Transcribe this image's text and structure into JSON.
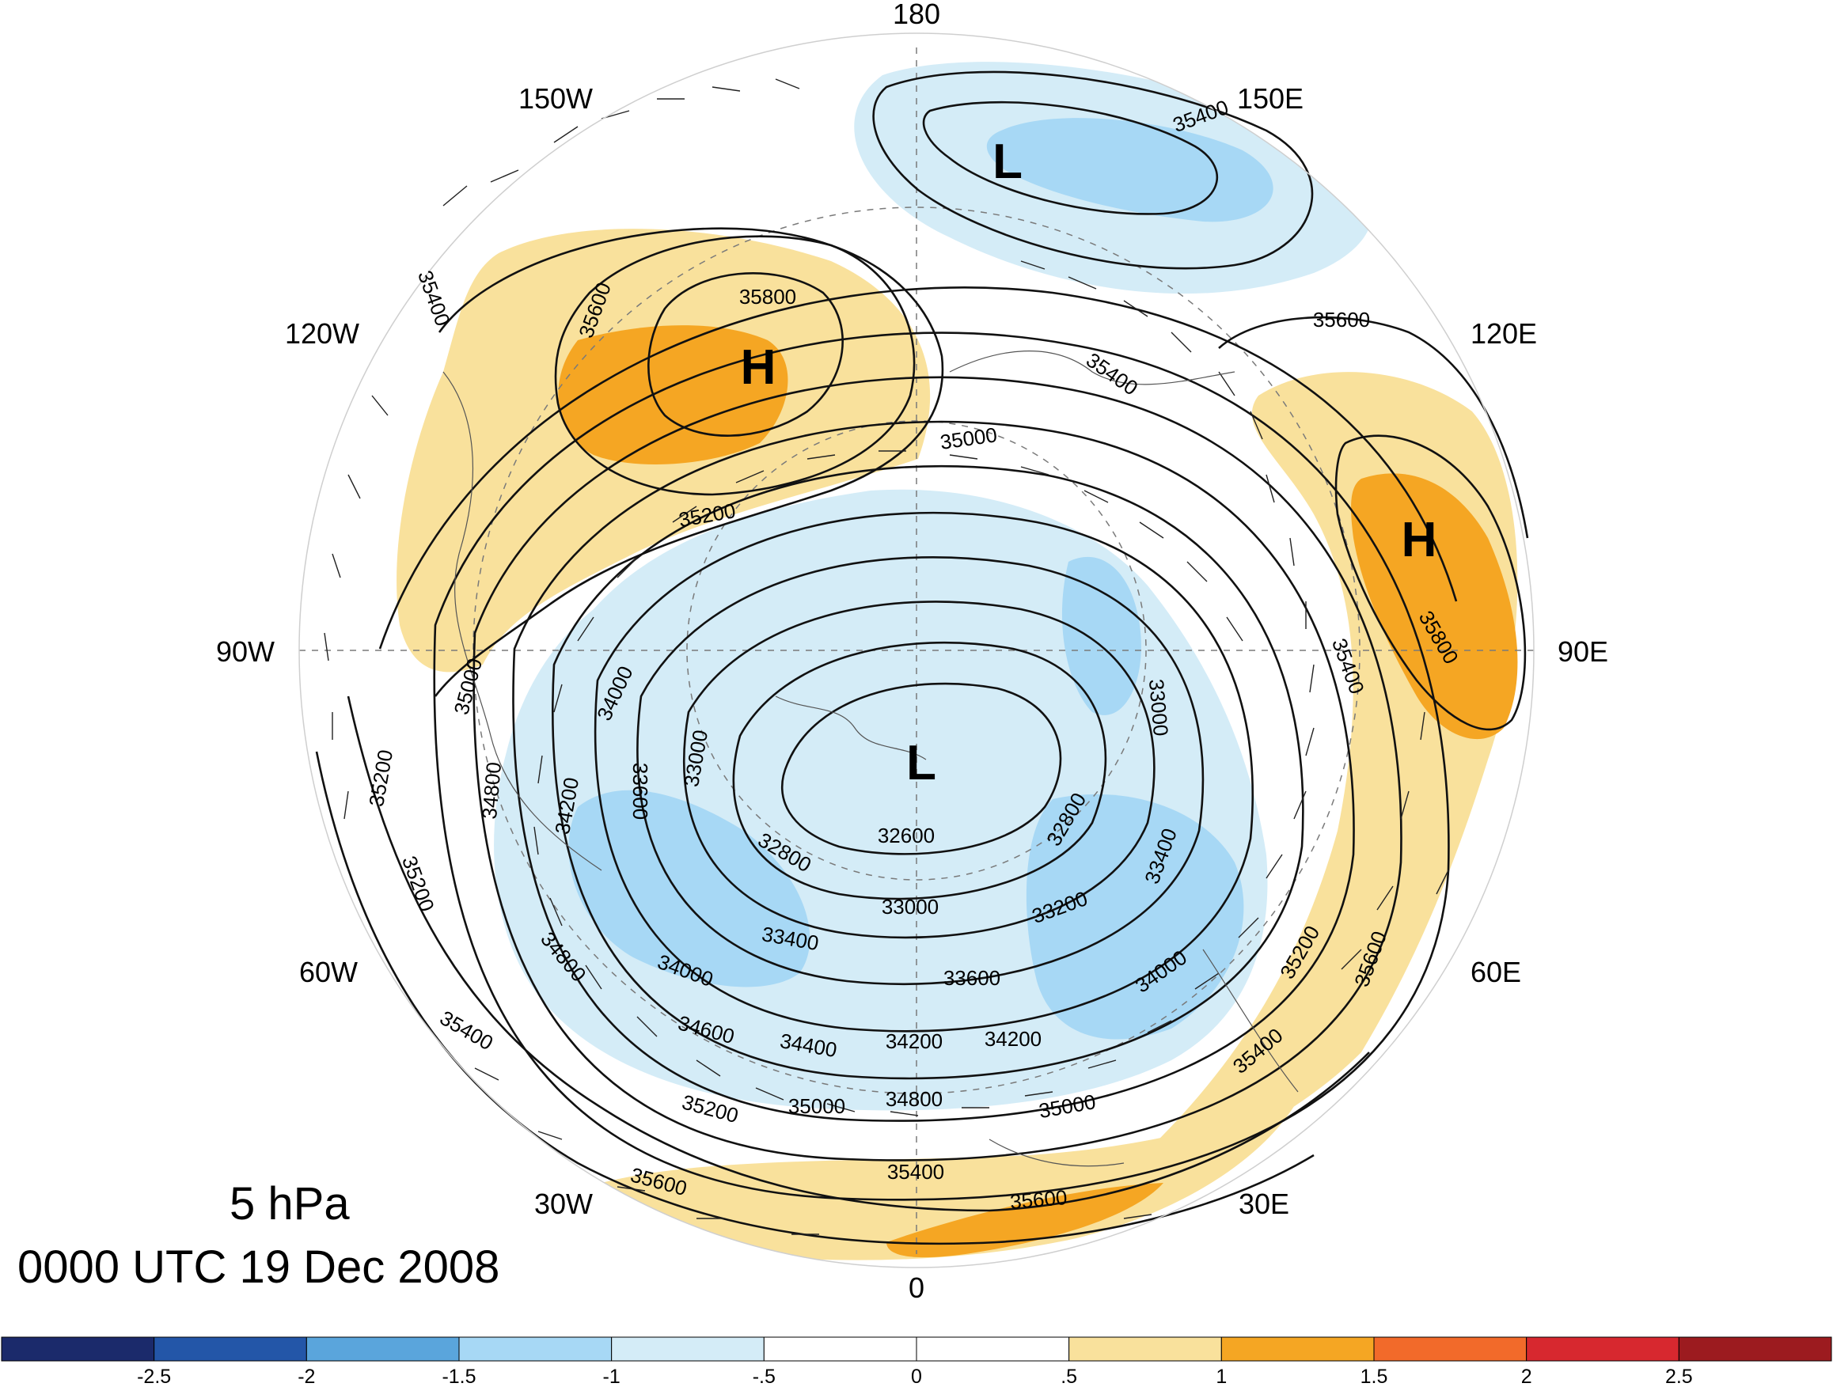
{
  "map": {
    "longitude_labels": [
      {
        "text": "180",
        "id": "lon-180"
      },
      {
        "text": "150E",
        "id": "lon-150e"
      },
      {
        "text": "120E",
        "id": "lon-120e"
      },
      {
        "text": "90E",
        "id": "lon-90e"
      },
      {
        "text": "60E",
        "id": "lon-60e"
      },
      {
        "text": "30E",
        "id": "lon-30e"
      },
      {
        "text": "0",
        "id": "lon-0"
      },
      {
        "text": "30W",
        "id": "lon-30w"
      },
      {
        "text": "60W",
        "id": "lon-60w"
      },
      {
        "text": "90W",
        "id": "lon-90w"
      },
      {
        "text": "120W",
        "id": "lon-120w"
      },
      {
        "text": "150W",
        "id": "lon-150w"
      }
    ],
    "centers": [
      {
        "text": "L",
        "id": "low-pacific"
      },
      {
        "text": "H",
        "id": "high-north-america"
      },
      {
        "text": "H",
        "id": "high-asia"
      },
      {
        "text": "L",
        "id": "low-polar-vortex"
      }
    ],
    "contour_labels": [
      "35400",
      "35800",
      "35600",
      "35400",
      "35600",
      "35400",
      "35000",
      "35200",
      "35800",
      "35400",
      "35000",
      "34000",
      "33600",
      "33000",
      "33000",
      "32600",
      "32800",
      "32800",
      "33400",
      "34200",
      "34800",
      "35200",
      "35200",
      "33000",
      "33400",
      "33200",
      "33600",
      "34000",
      "34000",
      "34800",
      "35400",
      "34600",
      "34400",
      "34200",
      "34200",
      "35000",
      "35200",
      "34800",
      "35000",
      "35400",
      "35400",
      "35600",
      "35600",
      "35200",
      "35600"
    ],
    "colors": {
      "neg_strong": "#a7d8f5",
      "neg_weak": "#d4ecf7",
      "pos_weak": "#f9e19c",
      "pos_strong": "#f5a623"
    }
  },
  "info": {
    "level": "5 hPa",
    "time": "0000 UTC 19 Dec 2008"
  },
  "colorbar": {
    "colors": [
      "#1b2a6b",
      "#2356a8",
      "#5aa5dc",
      "#a7d8f5",
      "#d4ecf7",
      "#ffffff",
      "#ffffff",
      "#f9e19c",
      "#f5a623",
      "#f26a2a",
      "#d7282f",
      "#9c1b1f"
    ],
    "ticks": [
      "-2.5",
      "-2",
      "-1.5",
      "-1",
      "-.5",
      "0",
      ".5",
      "1",
      "1.5",
      "2",
      "2.5"
    ]
  }
}
